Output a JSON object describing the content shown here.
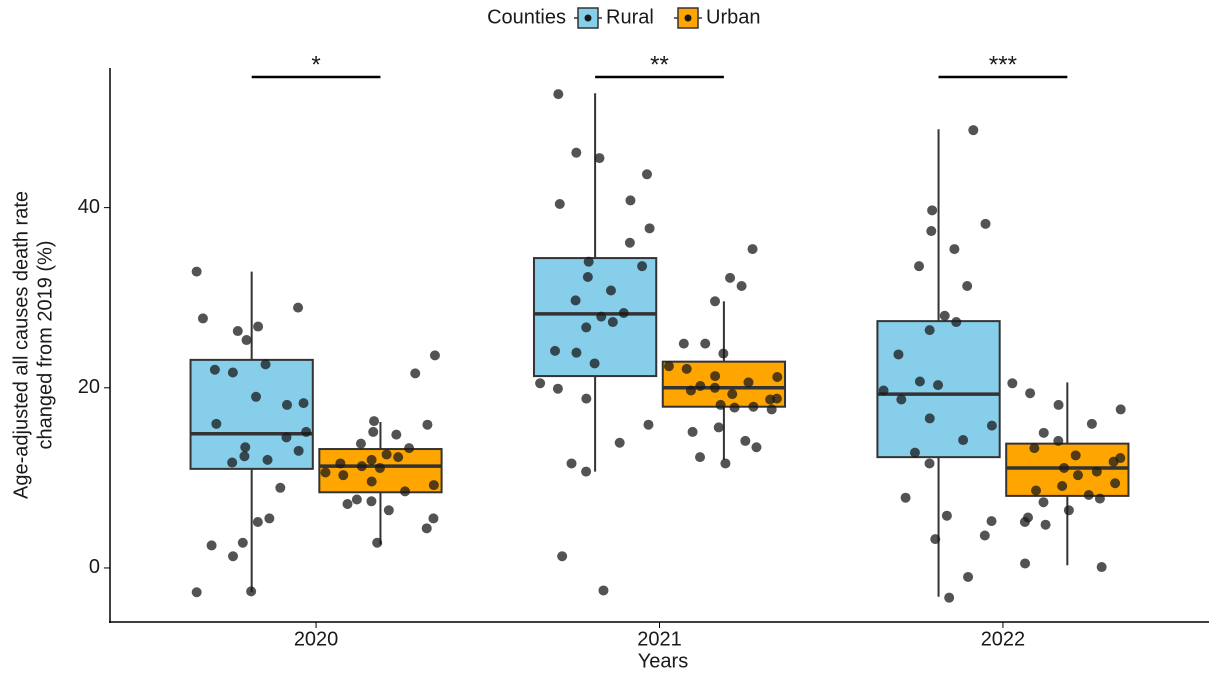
{
  "chart_data": {
    "type": "box",
    "x_label": "Years",
    "y_label": [
      "Age-adjusted all causes death rate",
      "changed from 2019 (%)"
    ],
    "legend_title": "Counties",
    "categories": [
      "2020",
      "2021",
      "2022"
    ],
    "annotations": [
      "*",
      "**",
      "***"
    ],
    "ylim": [
      -6,
      55.5
    ],
    "yticks": [
      0,
      20,
      40
    ],
    "series": [
      {
        "name": "Rural",
        "color": "#87ceeb",
        "boxes": [
          {
            "low": -2.7,
            "q1": 11,
            "median": 14.9,
            "q3": 23.1,
            "high": 32.9,
            "points": [
              32.9,
              28.9,
              27.7,
              26.8,
              26.3,
              25.3,
              22.6,
              22,
              21.7,
              19,
              18.3,
              18.1,
              16,
              15.1,
              14.5,
              13.4,
              13,
              12.4,
              12,
              11.7,
              8.9,
              5.1,
              5.5,
              2.8,
              2.5,
              1.3,
              -2.6,
              -2.7
            ]
          },
          {
            "low": 10.7,
            "q1": 21.3,
            "median": 28.2,
            "q3": 34.4,
            "high": 52.7,
            "points": [
              52.6,
              46.1,
              45.5,
              43.7,
              40.8,
              40.4,
              37.7,
              36.1,
              34,
              33.5,
              32.3,
              30.8,
              29.7,
              28.3,
              27.9,
              27.3,
              26.7,
              24.1,
              23.9,
              22.7,
              20.5,
              19.9,
              18.8,
              15.9,
              13.9,
              11.6,
              10.7,
              1.3,
              -2.5
            ]
          },
          {
            "low": -3.2,
            "q1": 12.3,
            "median": 19.3,
            "q3": 27.4,
            "high": 48.7,
            "points": [
              48.6,
              39.7,
              38.2,
              37.4,
              35.4,
              33.5,
              31.3,
              28,
              27.3,
              26.4,
              23.7,
              20.7,
              20.3,
              19.7,
              18.7,
              16.6,
              15.8,
              14.2,
              12.8,
              11.6,
              7.8,
              5.8,
              5.2,
              3.6,
              3.2,
              -1,
              -3.3
            ]
          }
        ]
      },
      {
        "name": "Urban",
        "color": "#ffa500",
        "boxes": [
          {
            "low": 2.6,
            "q1": 8.4,
            "median": 11.3,
            "q3": 13.2,
            "high": 16.2,
            "points": [
              23.6,
              21.6,
              16.3,
              15.9,
              15.1,
              14.8,
              13.8,
              13.3,
              12.6,
              12.3,
              12,
              11.6,
              11.3,
              11.1,
              10.6,
              10.3,
              9.6,
              9.2,
              8.5,
              7.6,
              7.4,
              7.1,
              6.4,
              5.5,
              4.4,
              2.8
            ]
          },
          {
            "low": 12,
            "q1": 17.9,
            "median": 20,
            "q3": 22.9,
            "high": 29.6,
            "points": [
              35.4,
              32.2,
              31.3,
              29.6,
              24.9,
              24.9,
              23.8,
              22.4,
              22.1,
              21.3,
              21.2,
              20.6,
              20.2,
              20,
              19.7,
              19.3,
              18.8,
              18.7,
              18.1,
              17.9,
              17.8,
              17.6,
              15.6,
              15.1,
              14.1,
              13.4,
              12.3,
              11.6
            ]
          },
          {
            "low": 0.3,
            "q1": 8,
            "median": 11.1,
            "q3": 13.8,
            "high": 20.6,
            "points": [
              20.5,
              19.4,
              18.1,
              17.6,
              16,
              15,
              14.1,
              13.3,
              12.5,
              12.2,
              11.8,
              11.1,
              10.7,
              10.3,
              9.4,
              9.1,
              8.6,
              8.1,
              7.7,
              7.3,
              6.4,
              5.6,
              5.1,
              4.8,
              0.5,
              0.1
            ]
          }
        ]
      }
    ]
  }
}
